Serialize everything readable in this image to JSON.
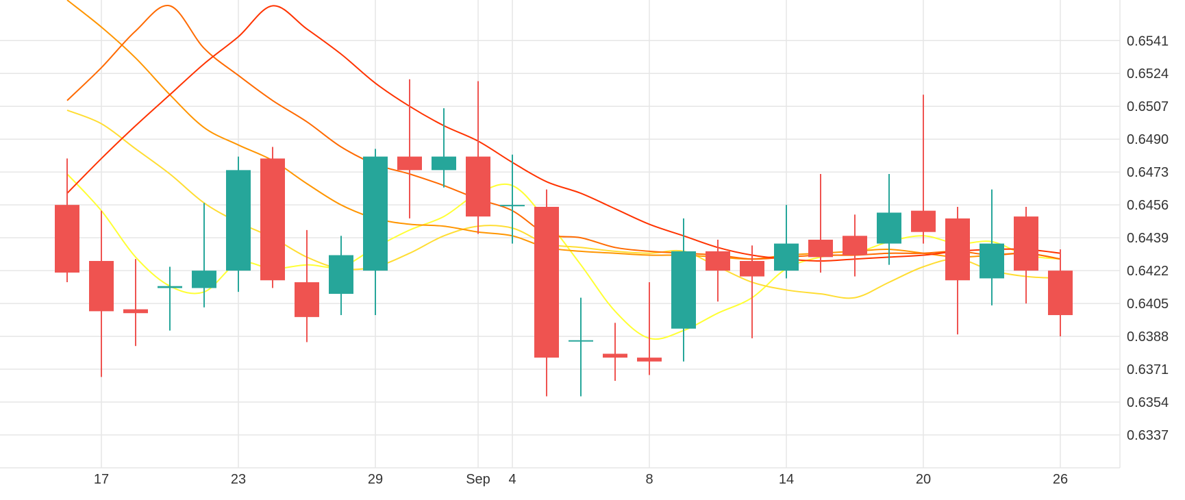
{
  "chart_data": {
    "type": "candlestick",
    "x_tick_labels": [
      "17",
      "23",
      "29",
      "Sep",
      "4",
      "8",
      "14",
      "20",
      "26"
    ],
    "y_ticks": [
      0.6337,
      0.6354,
      0.6371,
      0.6388,
      0.6405,
      0.6422,
      0.6439,
      0.6456,
      0.6473,
      0.649,
      0.6507,
      0.6524,
      0.6541
    ],
    "ylim": [
      0.632,
      0.6562
    ],
    "grid": true,
    "colors": {
      "up": "#26a69a",
      "down": "#ef5350",
      "grid": "#e6e6e6"
    },
    "candles": [
      {
        "date": "Aug 16",
        "open": 0.6456,
        "high": 0.648,
        "low": 0.6416,
        "close": 0.6421
      },
      {
        "date": "Aug 17",
        "open": 0.6427,
        "high": 0.6453,
        "low": 0.6367,
        "close": 0.6401
      },
      {
        "date": "Aug 18",
        "open": 0.6402,
        "high": 0.6428,
        "low": 0.6383,
        "close": 0.64
      },
      {
        "date": "Aug 19",
        "open": 0.6413,
        "high": 0.6424,
        "low": 0.6391,
        "close": 0.6414
      },
      {
        "date": "Aug 21",
        "open": 0.6413,
        "high": 0.6457,
        "low": 0.6403,
        "close": 0.6422
      },
      {
        "date": "Aug 23",
        "open": 0.6422,
        "high": 0.6481,
        "low": 0.6411,
        "close": 0.6474
      },
      {
        "date": "Aug 24",
        "open": 0.648,
        "high": 0.6486,
        "low": 0.6413,
        "close": 0.6417
      },
      {
        "date": "Aug 25",
        "open": 0.6416,
        "high": 0.6443,
        "low": 0.6385,
        "close": 0.6398
      },
      {
        "date": "Aug 28",
        "open": 0.641,
        "high": 0.644,
        "low": 0.6399,
        "close": 0.643
      },
      {
        "date": "Aug 29",
        "open": 0.6422,
        "high": 0.6485,
        "low": 0.6399,
        "close": 0.6481
      },
      {
        "date": "Aug 30",
        "open": 0.6481,
        "high": 0.6521,
        "low": 0.6449,
        "close": 0.6474
      },
      {
        "date": "Aug 31",
        "open": 0.6474,
        "high": 0.6506,
        "low": 0.6465,
        "close": 0.6481
      },
      {
        "date": "Sep 1",
        "open": 0.6481,
        "high": 0.652,
        "low": 0.6441,
        "close": 0.645
      },
      {
        "date": "Sep 4",
        "open": 0.6456,
        "high": 0.6482,
        "low": 0.6436,
        "close": 0.6456
      },
      {
        "date": "Sep 5",
        "open": 0.6455,
        "high": 0.6464,
        "low": 0.6357,
        "close": 0.6377
      },
      {
        "date": "Sep 6",
        "open": 0.6386,
        "high": 0.6408,
        "low": 0.6357,
        "close": 0.6386
      },
      {
        "date": "Sep 7",
        "open": 0.6379,
        "high": 0.6395,
        "low": 0.6365,
        "close": 0.6377
      },
      {
        "date": "Sep 8",
        "open": 0.6377,
        "high": 0.6416,
        "low": 0.6368,
        "close": 0.6375
      },
      {
        "date": "Sep 11",
        "open": 0.6392,
        "high": 0.6449,
        "low": 0.6375,
        "close": 0.6432
      },
      {
        "date": "Sep 12",
        "open": 0.6432,
        "high": 0.6438,
        "low": 0.6406,
        "close": 0.6422
      },
      {
        "date": "Sep 13",
        "open": 0.6427,
        "high": 0.6435,
        "low": 0.6387,
        "close": 0.6419
      },
      {
        "date": "Sep 14",
        "open": 0.6422,
        "high": 0.6456,
        "low": 0.6418,
        "close": 0.6436
      },
      {
        "date": "Sep 15",
        "open": 0.6438,
        "high": 0.6472,
        "low": 0.6421,
        "close": 0.6429
      },
      {
        "date": "Sep 18",
        "open": 0.644,
        "high": 0.6451,
        "low": 0.6419,
        "close": 0.643
      },
      {
        "date": "Sep 19",
        "open": 0.6436,
        "high": 0.6472,
        "low": 0.6425,
        "close": 0.6452
      },
      {
        "date": "Sep 20",
        "open": 0.6453,
        "high": 0.6513,
        "low": 0.6436,
        "close": 0.6442
      },
      {
        "date": "Sep 21",
        "open": 0.6449,
        "high": 0.6455,
        "low": 0.6389,
        "close": 0.6417
      },
      {
        "date": "Sep 22",
        "open": 0.6418,
        "high": 0.6464,
        "low": 0.6404,
        "close": 0.6436
      },
      {
        "date": "Sep 25",
        "open": 0.645,
        "high": 0.6455,
        "low": 0.6405,
        "close": 0.6422
      },
      {
        "date": "Sep 26",
        "open": 0.6422,
        "high": 0.6433,
        "low": 0.6388,
        "close": 0.6399
      }
    ],
    "moving_averages": [
      {
        "color": "#ffff33",
        "values": [
          0.6472,
          0.6453,
          0.6429,
          0.6414,
          0.6411,
          0.6426,
          0.6423,
          0.6425,
          0.6424,
          0.6434,
          0.6443,
          0.645,
          0.6462,
          0.6466,
          0.6448,
          0.6425,
          0.6401,
          0.6387,
          0.6391,
          0.64,
          0.6408,
          0.6423,
          0.6429,
          0.6431,
          0.6437,
          0.644,
          0.6436,
          0.6437,
          0.643,
          0.6428
        ]
      },
      {
        "color": "#ffdd33",
        "values": [
          0.6505,
          0.6498,
          0.6485,
          0.6472,
          0.6457,
          0.6447,
          0.6439,
          0.6429,
          0.6423,
          0.6424,
          0.6431,
          0.644,
          0.6445,
          0.6444,
          0.6436,
          0.6434,
          0.6432,
          0.6431,
          0.6432,
          0.6424,
          0.6416,
          0.6412,
          0.641,
          0.6408,
          0.6416,
          0.6424,
          0.6428,
          0.6422,
          0.6419,
          0.6418
        ]
      },
      {
        "color": "#ff9500",
        "values": [
          0.6562,
          0.6548,
          0.6532,
          0.6513,
          0.6496,
          0.6487,
          0.6479,
          0.6467,
          0.6456,
          0.6449,
          0.6446,
          0.6445,
          0.6442,
          0.644,
          0.6434,
          0.6432,
          0.6431,
          0.643,
          0.643,
          0.6429,
          0.6428,
          0.643,
          0.6431,
          0.6432,
          0.6433,
          0.6431,
          0.6429,
          0.643,
          0.6431,
          0.6428
        ]
      },
      {
        "color": "#ff6a00",
        "values": [
          0.651,
          0.6527,
          0.6546,
          0.6559,
          0.6537,
          0.6523,
          0.651,
          0.6499,
          0.6486,
          0.6477,
          0.6472,
          0.6466,
          0.6459,
          0.6453,
          0.6441,
          0.6439,
          0.6434,
          0.6432,
          0.6431,
          0.643,
          0.6428,
          0.6429,
          0.643,
          0.643,
          0.6431,
          0.6431,
          0.6432,
          0.643,
          0.6431,
          0.6428
        ]
      },
      {
        "color": "#ff3300",
        "values": [
          0.6462,
          0.648,
          0.6497,
          0.6513,
          0.6529,
          0.6543,
          0.6559,
          0.6547,
          0.6534,
          0.6519,
          0.6507,
          0.6497,
          0.6489,
          0.6478,
          0.6468,
          0.6462,
          0.6454,
          0.6446,
          0.644,
          0.6434,
          0.643,
          0.6428,
          0.6427,
          0.6428,
          0.6429,
          0.643,
          0.6432,
          0.6433,
          0.6433,
          0.6431
        ]
      }
    ]
  }
}
